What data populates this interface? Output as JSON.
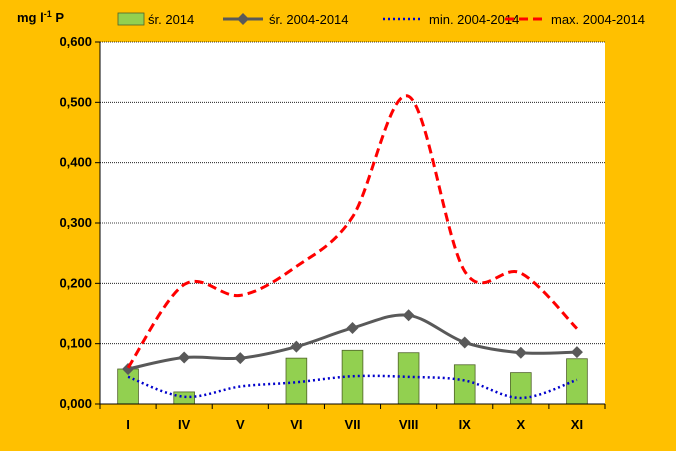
{
  "chart_data": {
    "type": "bar",
    "ylabel_main": "mg l",
    "ylabel_sup": "-1",
    "ylabel_unit": " P",
    "categories": [
      "I",
      "IV",
      "V",
      "VI",
      "VII",
      "VIII",
      "IX",
      "X",
      "XI"
    ],
    "ylim": [
      0,
      0.6
    ],
    "yticks": [
      "0,000",
      "0,100",
      "0,200",
      "0,300",
      "0,400",
      "0,500",
      "0,600"
    ],
    "grid": true,
    "legend_position": "top",
    "series": [
      {
        "name": "śr. 2014",
        "kind": "bar",
        "color": "#92D050",
        "values": [
          0.058,
          0.02,
          null,
          0.076,
          0.089,
          0.085,
          0.065,
          0.052,
          0.075
        ]
      },
      {
        "name": "śr. 2004-2014",
        "kind": "line",
        "style": "solid-diamond",
        "color": "#595959",
        "values": [
          0.058,
          0.077,
          0.076,
          0.095,
          0.126,
          0.147,
          0.102,
          0.085,
          0.086
        ]
      },
      {
        "name": "min. 2004-2014",
        "kind": "line",
        "style": "dotted",
        "color": "#0000CC",
        "values": [
          0.045,
          0.012,
          0.029,
          0.036,
          0.046,
          0.045,
          0.039,
          0.01,
          0.04
        ]
      },
      {
        "name": "max. 2004-2014",
        "kind": "line",
        "style": "dashed",
        "color": "#FF0000",
        "values": [
          0.06,
          0.198,
          0.18,
          0.228,
          0.31,
          0.51,
          0.22,
          0.217,
          0.125
        ]
      }
    ]
  }
}
